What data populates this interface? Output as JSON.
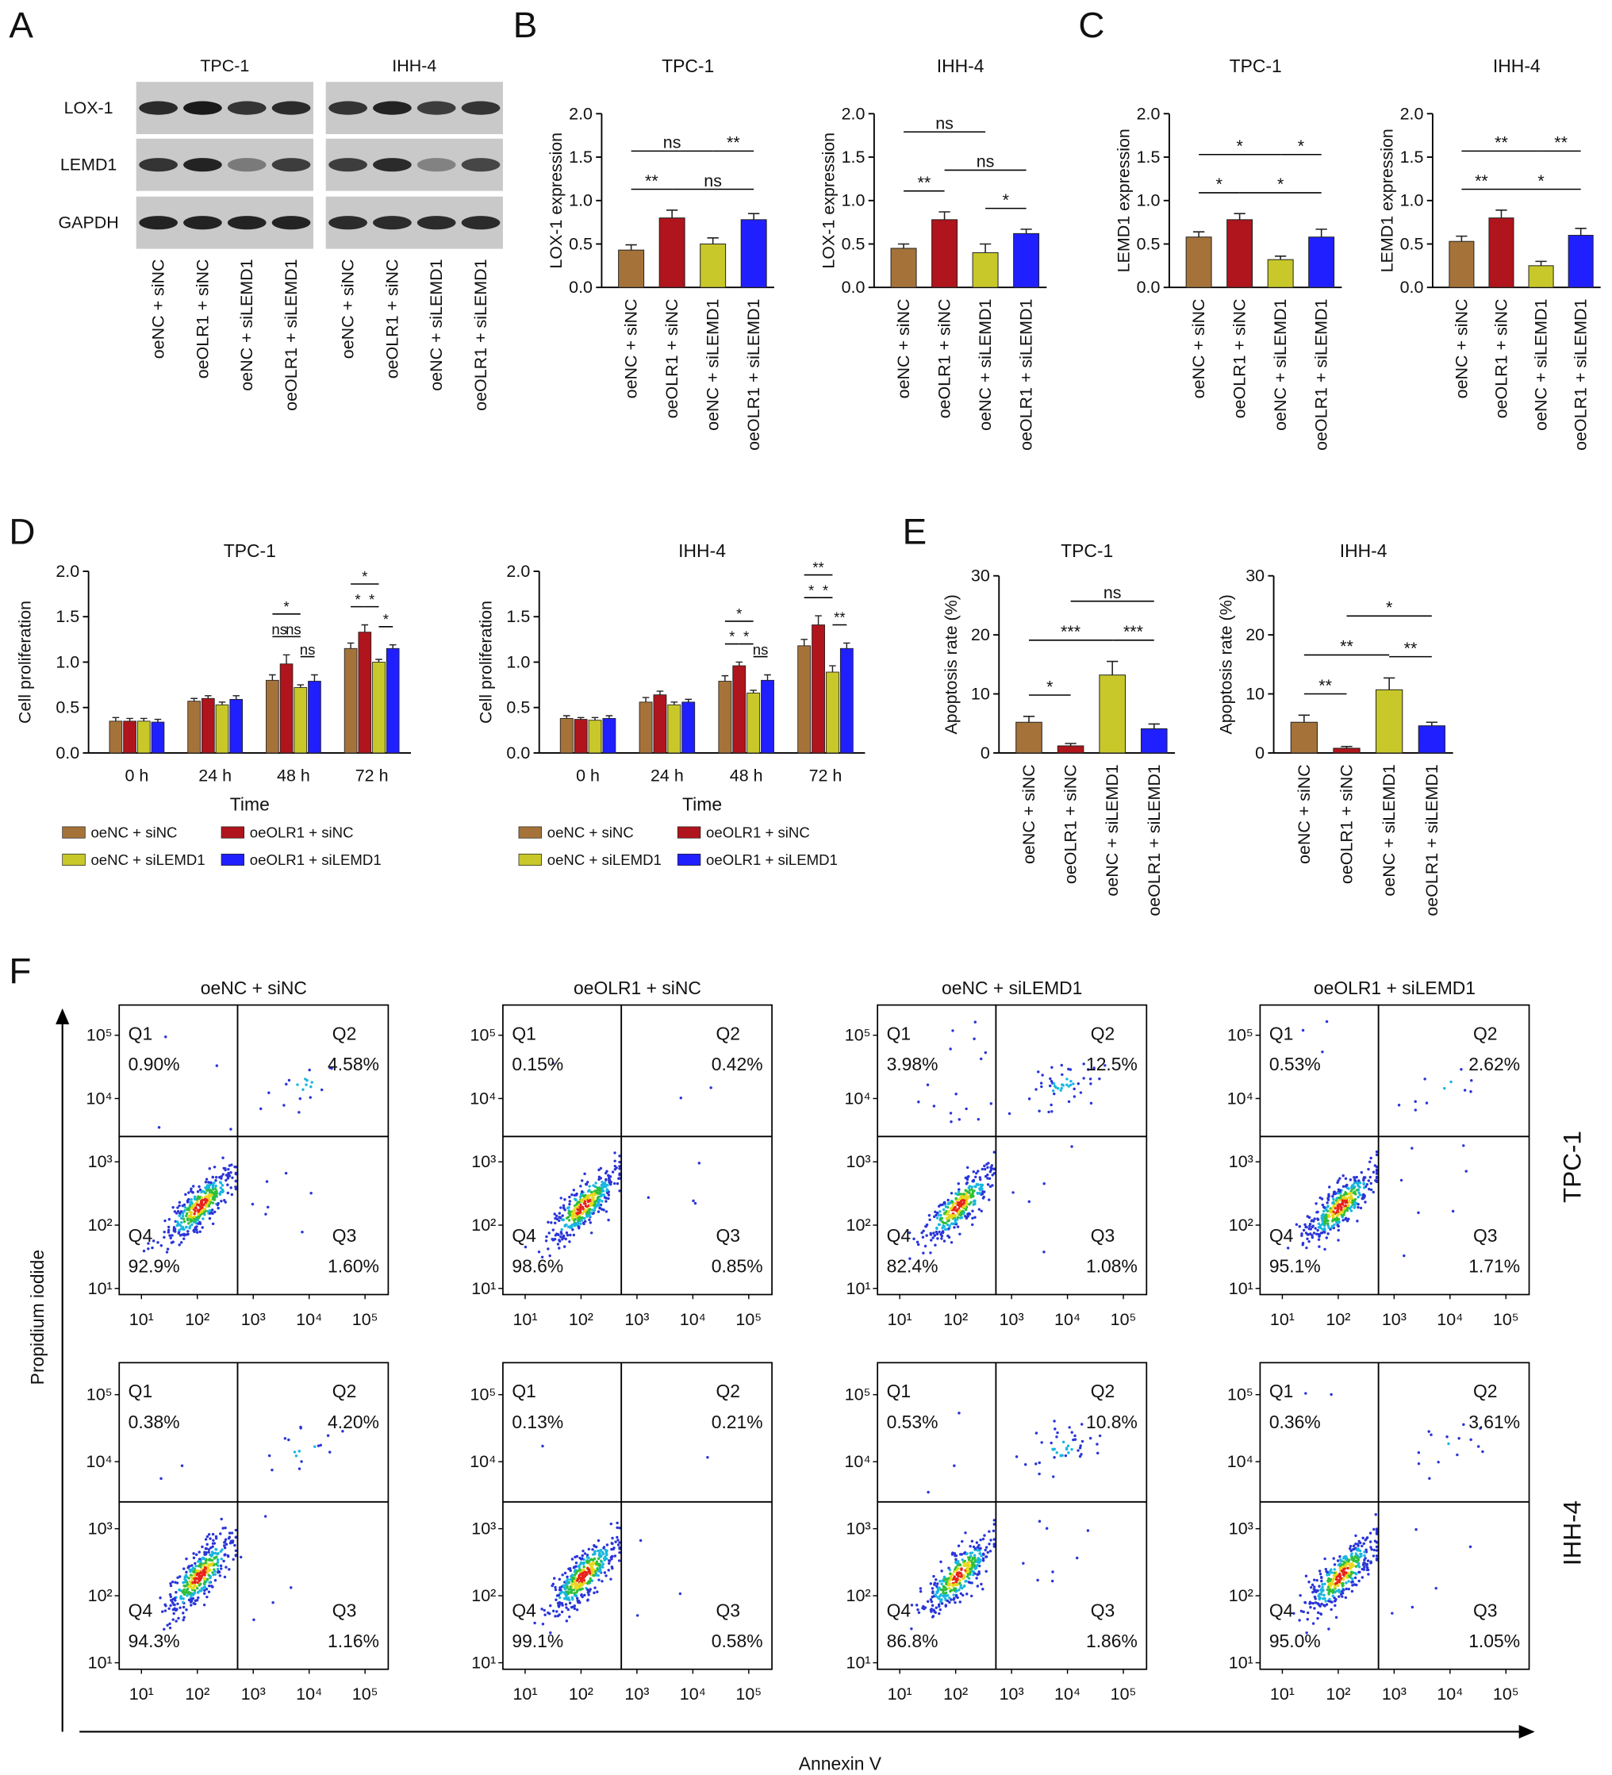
{
  "chart_data": [
    {
      "type": "blot",
      "panel": "A",
      "groups": [
        "TPC-1",
        "IHH-4"
      ],
      "rows": [
        "LOX-1",
        "LEMD1",
        "GAPDH"
      ],
      "categories": [
        "oeNC + siNC",
        "oeOLR1 + siNC",
        "oeNC + siLEMD1",
        "oeOLR1 + siLEMD1"
      ]
    },
    {
      "type": "bar",
      "panel": "B",
      "title": "TPC-1",
      "ylabel": "LOX-1 expression",
      "categories": [
        "oeNC + siNC",
        "oeOLR1 + siNC",
        "oeNC + siLEMD1",
        "oeOLR1 + siLEMD1"
      ],
      "values": [
        0.43,
        0.8,
        0.5,
        0.78
      ],
      "errors": [
        0.06,
        0.09,
        0.07,
        0.07
      ],
      "colors": [
        "#a5733a",
        "#b0141c",
        "#c8c82a",
        "#1f1fff"
      ],
      "ylim": [
        0,
        2
      ],
      "yticks": [
        {
          "value": 0,
          "label": "0.0"
        },
        0.5,
        {
          "value": 1,
          "label": "1.0"
        },
        1.5,
        {
          "value": 2,
          "label": "2.0"
        }
      ],
      "significance": [
        {
          "pair": [
            "oeNC + siNC",
            "oeOLR1 + siNC"
          ],
          "label": "**"
        },
        {
          "pair": [
            "oeOLR1 + siNC",
            "oeOLR1 + siLEMD1"
          ],
          "label": "ns"
        },
        {
          "pair": [
            "oeNC + siNC",
            "oeNC + siLEMD1"
          ],
          "label": "ns"
        },
        {
          "pair": [
            "oeNC + siLEMD1",
            "oeOLR1 + siLEMD1"
          ],
          "label": "**"
        }
      ]
    },
    {
      "type": "bar",
      "title": "IHH-4",
      "ylabel": "LOX-1 expression",
      "categories": [
        "oeNC + siNC",
        "oeOLR1 + siNC",
        "oeNC + siLEMD1",
        "oeOLR1 + siLEMD1"
      ],
      "values": [
        0.45,
        0.78,
        0.4,
        0.62
      ],
      "errors": [
        0.05,
        0.09,
        0.1,
        0.05
      ],
      "colors": [
        "#a5733a",
        "#b0141c",
        "#c8c82a",
        "#1f1fff"
      ],
      "ylim": [
        0,
        2
      ],
      "yticks": [
        {
          "value": 0,
          "label": "0.0"
        },
        0.5,
        {
          "value": 1,
          "label": "1.0"
        },
        1.5,
        {
          "value": 2,
          "label": "2.0"
        }
      ],
      "significance": [
        {
          "pair": [
            "oeNC + siLEMD1",
            "oeOLR1 + siLEMD1"
          ],
          "label": "*"
        },
        {
          "pair": [
            "oeNC + siNC",
            "oeOLR1 + siNC"
          ],
          "label": "**"
        },
        {
          "pair": [
            "oeOLR1 + siNC",
            "oeOLR1 + siLEMD1"
          ],
          "label": "ns"
        },
        {
          "pair": [
            "oeNC + siNC",
            "oeNC + siLEMD1"
          ],
          "label": "ns"
        }
      ]
    },
    {
      "type": "bar",
      "panel": "C",
      "title": "TPC-1",
      "ylabel": "LEMD1 expression",
      "categories": [
        "oeNC + siNC",
        "oeOLR1 + siNC",
        "oeNC + siLEMD1",
        "oeOLR1 + siLEMD1"
      ],
      "values": [
        0.58,
        0.78,
        0.32,
        0.58
      ],
      "errors": [
        0.06,
        0.07,
        0.04,
        0.09
      ],
      "colors": [
        "#a5733a",
        "#b0141c",
        "#c8c82a",
        "#1f1fff"
      ],
      "ylim": [
        0,
        2
      ],
      "yticks": [
        {
          "value": 0,
          "label": "0.0"
        },
        0.5,
        {
          "value": 1,
          "label": "1.0"
        },
        1.5,
        {
          "value": 2,
          "label": "2.0"
        }
      ],
      "significance": [
        {
          "pair": [
            "oeNC + siNC",
            "oeOLR1 + siNC"
          ],
          "label": "*"
        },
        {
          "pair": [
            "oeOLR1 + siNC",
            "oeOLR1 + siLEMD1"
          ],
          "label": "*"
        },
        {
          "pair": [
            "oeNC + siNC",
            "oeNC + siLEMD1"
          ],
          "label": "*"
        },
        {
          "pair": [
            "oeNC + siLEMD1",
            "oeOLR1 + siLEMD1"
          ],
          "label": "*"
        }
      ]
    },
    {
      "type": "bar",
      "title": "IHH-4",
      "ylabel": "LEMD1 expression",
      "categories": [
        "oeNC + siNC",
        "oeOLR1 + siNC",
        "oeNC + siLEMD1",
        "oeOLR1 + siLEMD1"
      ],
      "values": [
        0.53,
        0.8,
        0.25,
        0.6
      ],
      "errors": [
        0.06,
        0.09,
        0.05,
        0.08
      ],
      "colors": [
        "#a5733a",
        "#b0141c",
        "#c8c82a",
        "#1f1fff"
      ],
      "ylim": [
        0,
        2
      ],
      "yticks": [
        {
          "value": 0,
          "label": "0.0"
        },
        0.5,
        {
          "value": 1,
          "label": "1.0"
        },
        1.5,
        {
          "value": 2,
          "label": "2.0"
        }
      ],
      "significance": [
        {
          "pair": [
            "oeNC + siNC",
            "oeOLR1 + siNC"
          ],
          "label": "**"
        },
        {
          "pair": [
            "oeOLR1 + siNC",
            "oeOLR1 + siLEMD1"
          ],
          "label": "*"
        },
        {
          "pair": [
            "oeNC + siNC",
            "oeNC + siLEMD1"
          ],
          "label": "**"
        },
        {
          "pair": [
            "oeNC + siLEMD1",
            "oeOLR1 + siLEMD1"
          ],
          "label": "**"
        }
      ]
    },
    {
      "type": "grouped_bar",
      "panel": "D",
      "title": "TPC-1",
      "ylabel": "Cell proliferation",
      "xlabel": "Time",
      "categories": [
        "0 h",
        "24 h",
        "48 h",
        "72 h"
      ],
      "series": [
        {
          "name": "oeNC + siNC",
          "color": "#a5733a",
          "values": [
            0.35,
            0.57,
            0.8,
            1.15
          ],
          "errors": [
            0.04,
            0.03,
            0.06,
            0.06
          ]
        },
        {
          "name": "oeOLR1 + siNC",
          "color": "#b0141c",
          "values": [
            0.35,
            0.6,
            0.98,
            1.33
          ],
          "errors": [
            0.03,
            0.03,
            0.1,
            0.08
          ]
        },
        {
          "name": "oeNC + siLEMD1",
          "color": "#c8c82a",
          "values": [
            0.35,
            0.53,
            0.72,
            1.0
          ],
          "errors": [
            0.03,
            0.03,
            0.03,
            0.03
          ]
        },
        {
          "name": "oeOLR1 + siLEMD1",
          "color": "#1f1fff",
          "values": [
            0.34,
            0.59,
            0.79,
            1.15
          ],
          "errors": [
            0.03,
            0.04,
            0.07,
            0.04
          ]
        }
      ],
      "ylim": [
        0,
        2
      ],
      "yticks": [
        {
          "value": 0,
          "label": "0.0"
        },
        0.5,
        {
          "value": 1,
          "label": "1.0"
        },
        1.5,
        {
          "value": 2,
          "label": "2.0"
        }
      ],
      "significance": [
        {
          "category": "48 h",
          "pair": [
            "oeNC + siLEMD1",
            "oeOLR1 + siLEMD1"
          ],
          "label": "ns"
        },
        {
          "category": "48 h",
          "pair": [
            "oeNC + siNC",
            "oeOLR1 + siNC"
          ],
          "label": "ns"
        },
        {
          "category": "48 h",
          "pair": [
            "oeOLR1 + siNC",
            "oeNC + siLEMD1"
          ],
          "label": "ns"
        },
        {
          "category": "48 h",
          "pair": [
            "oeNC + siNC",
            "oeNC + siLEMD1"
          ],
          "label": "*"
        },
        {
          "category": "72 h",
          "pair": [
            "oeNC + siLEMD1",
            "oeOLR1 + siLEMD1"
          ],
          "label": "*"
        },
        {
          "category": "72 h",
          "pair": [
            "oeNC + siNC",
            "oeOLR1 + siNC"
          ],
          "label": "*"
        },
        {
          "category": "72 h",
          "pair": [
            "oeOLR1 + siNC",
            "oeNC + siLEMD1"
          ],
          "label": "*"
        },
        {
          "category": "72 h",
          "pair": [
            "oeNC + siNC",
            "oeNC + siLEMD1"
          ],
          "label": "*"
        }
      ]
    },
    {
      "type": "grouped_bar",
      "title": "IHH-4",
      "ylabel": "Cell proliferation",
      "xlabel": "Time",
      "categories": [
        "0 h",
        "24 h",
        "48 h",
        "72 h"
      ],
      "series": [
        {
          "name": "oeNC + siNC",
          "color": "#a5733a",
          "values": [
            0.38,
            0.56,
            0.79,
            1.18
          ],
          "errors": [
            0.03,
            0.05,
            0.06,
            0.07
          ]
        },
        {
          "name": "oeOLR1 + siNC",
          "color": "#b0141c",
          "values": [
            0.37,
            0.64,
            0.96,
            1.41
          ],
          "errors": [
            0.02,
            0.04,
            0.04,
            0.1
          ]
        },
        {
          "name": "oeNC + siLEMD1",
          "color": "#c8c82a",
          "values": [
            0.36,
            0.53,
            0.66,
            0.89
          ],
          "errors": [
            0.03,
            0.03,
            0.03,
            0.07
          ]
        },
        {
          "name": "oeOLR1 + siLEMD1",
          "color": "#1f1fff",
          "values": [
            0.38,
            0.56,
            0.8,
            1.15
          ],
          "errors": [
            0.03,
            0.03,
            0.06,
            0.06
          ]
        }
      ],
      "ylim": [
        0,
        2
      ],
      "yticks": [
        {
          "value": 0,
          "label": "0.0"
        },
        0.5,
        {
          "value": 1,
          "label": "1.0"
        },
        1.5,
        {
          "value": 2,
          "label": "2.0"
        }
      ],
      "significance": [
        {
          "category": "48 h",
          "pair": [
            "oeNC + siLEMD1",
            "oeOLR1 + siLEMD1"
          ],
          "label": "ns"
        },
        {
          "category": "48 h",
          "pair": [
            "oeNC + siNC",
            "oeOLR1 + siNC"
          ],
          "label": "*"
        },
        {
          "category": "48 h",
          "pair": [
            "oeOLR1 + siNC",
            "oeNC + siLEMD1"
          ],
          "label": "*"
        },
        {
          "category": "48 h",
          "pair": [
            "oeNC + siNC",
            "oeNC + siLEMD1"
          ],
          "label": "*"
        },
        {
          "category": "72 h",
          "pair": [
            "oeNC + siLEMD1",
            "oeOLR1 + siLEMD1"
          ],
          "label": "**"
        },
        {
          "category": "72 h",
          "pair": [
            "oeNC + siNC",
            "oeOLR1 + siNC"
          ],
          "label": "*"
        },
        {
          "category": "72 h",
          "pair": [
            "oeOLR1 + siNC",
            "oeNC + siLEMD1"
          ],
          "label": "*"
        },
        {
          "category": "72 h",
          "pair": [
            "oeNC + siNC",
            "oeNC + siLEMD1"
          ],
          "label": "**"
        }
      ]
    },
    {
      "type": "bar",
      "panel": "E",
      "title": "TPC-1",
      "ylabel": "Apoptosis rate (%)",
      "categories": [
        "oeNC + siNC",
        "oeOLR1 + siNC",
        "oeNC + siLEMD1",
        "oeOLR1 + siLEMD1"
      ],
      "values": [
        5.2,
        1.2,
        13.2,
        4.1
      ],
      "errors": [
        1.0,
        0.4,
        2.3,
        0.8
      ],
      "colors": [
        "#a5733a",
        "#b0141c",
        "#c8c82a",
        "#1f1fff"
      ],
      "ylim": [
        0,
        30
      ],
      "yticks": [
        0,
        10,
        20,
        30
      ],
      "significance": [
        {
          "pair": [
            "oeNC + siNC",
            "oeOLR1 + siNC"
          ],
          "label": "*"
        },
        {
          "pair": [
            "oeNC + siNC",
            "oeNC + siLEMD1"
          ],
          "label": "***"
        },
        {
          "pair": [
            "oeNC + siLEMD1",
            "oeOLR1 + siLEMD1"
          ],
          "label": "***"
        },
        {
          "pair": [
            "oeOLR1 + siNC",
            "oeOLR1 + siLEMD1"
          ],
          "label": "ns"
        }
      ]
    },
    {
      "type": "bar",
      "title": "IHH-4",
      "ylabel": "Apoptosis rate (%)",
      "categories": [
        "oeNC + siNC",
        "oeOLR1 + siNC",
        "oeNC + siLEMD1",
        "oeOLR1 + siLEMD1"
      ],
      "values": [
        5.2,
        0.8,
        10.7,
        4.6
      ],
      "errors": [
        1.2,
        0.3,
        2.0,
        0.6
      ],
      "colors": [
        "#a5733a",
        "#b0141c",
        "#c8c82a",
        "#1f1fff"
      ],
      "ylim": [
        0,
        30
      ],
      "yticks": [
        0,
        10,
        20,
        30
      ],
      "significance": [
        {
          "pair": [
            "oeNC + siNC",
            "oeOLR1 + siNC"
          ],
          "label": "**"
        },
        {
          "pair": [
            "oeNC + siNC",
            "oeNC + siLEMD1"
          ],
          "label": "**"
        },
        {
          "pair": [
            "oeNC + siLEMD1",
            "oeOLR1 + siLEMD1"
          ],
          "label": "**"
        },
        {
          "pair": [
            "oeOLR1 + siNC",
            "oeOLR1 + siLEMD1"
          ],
          "label": "*"
        }
      ]
    },
    {
      "type": "flow",
      "panel": "F",
      "xlabel": "Annexin V",
      "ylabel": "Propidium iodide",
      "log": true,
      "columns": [
        "oeNC + siNC",
        "oeOLR1 + siNC",
        "oeNC + siLEMD1",
        "oeOLR1 + siLEMD1"
      ],
      "rows": [
        "TPC-1",
        "IHH-4"
      ],
      "quadrants": [
        "Q1",
        "Q2",
        "Q3",
        "Q4"
      ],
      "xlim": [
        4,
        260000
      ],
      "ylim": [
        8,
        300000
      ],
      "xticks": [
        {
          "value": 10,
          "label": "10¹"
        },
        {
          "value": 100,
          "label": "10²"
        },
        {
          "value": 1000,
          "label": "10³"
        },
        {
          "value": 10000,
          "label": "10⁴"
        },
        {
          "value": 100000,
          "label": "10⁵"
        }
      ],
      "yticks": [
        {
          "value": 10,
          "label": "10¹"
        },
        {
          "value": 100,
          "label": "10²"
        },
        {
          "value": 1000,
          "label": "10³"
        },
        {
          "value": 10000,
          "label": "10⁴"
        },
        {
          "value": 100000,
          "label": "10⁵"
        }
      ],
      "plots": [
        {
          "values": [
            0.9,
            4.58,
            1.6,
            92.9
          ],
          "value_labels": [
            "0.90%",
            "4.58%",
            "1.60%",
            "92.9%"
          ]
        },
        {
          "values": [
            0.15,
            0.42,
            0.85,
            98.6
          ],
          "value_labels": [
            "0.15%",
            "0.42%",
            "0.85%",
            "98.6%"
          ]
        },
        {
          "values": [
            3.98,
            12.5,
            1.08,
            82.4
          ],
          "value_labels": [
            "3.98%",
            "12.5%",
            "1.08%",
            "82.4%"
          ]
        },
        {
          "values": [
            0.53,
            2.62,
            1.71,
            95.1
          ],
          "value_labels": [
            "0.53%",
            "2.62%",
            "1.71%",
            "95.1%"
          ]
        },
        {
          "values": [
            0.38,
            4.2,
            1.16,
            94.3
          ],
          "value_labels": [
            "0.38%",
            "4.20%",
            "1.16%",
            "94.3%"
          ]
        },
        {
          "values": [
            0.13,
            0.21,
            0.58,
            99.1
          ],
          "value_labels": [
            "0.13%",
            "0.21%",
            "0.58%",
            "99.1%"
          ]
        },
        {
          "values": [
            0.53,
            10.8,
            1.86,
            86.8
          ],
          "value_labels": [
            "0.53%",
            "10.8%",
            "1.86%",
            "86.8%"
          ]
        },
        {
          "values": [
            0.36,
            3.61,
            1.05,
            95.0
          ],
          "value_labels": [
            "0.36%",
            "3.61%",
            "1.05%",
            "95.0%"
          ]
        }
      ]
    }
  ]
}
